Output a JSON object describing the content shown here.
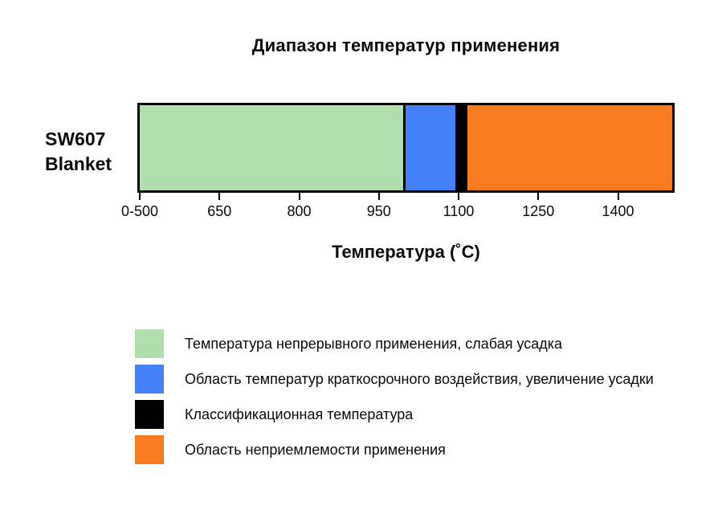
{
  "chart_data": {
    "type": "bar",
    "orientation": "horizontal-stacked-range",
    "title": "Диапазон температур применения",
    "xlabel": "Температура (˚C)",
    "category": "SW607 Blanket",
    "category_lines": [
      "SW607",
      "Blanket"
    ],
    "grid": false,
    "legend_position": "bottom-left",
    "axis": {
      "xmin": 500,
      "xmax": 1502,
      "ticks": [
        {
          "label": "0-500",
          "value": 500
        },
        {
          "label": "650",
          "value": 650
        },
        {
          "label": "800",
          "value": 800
        },
        {
          "label": "950",
          "value": 950
        },
        {
          "label": "1100",
          "value": 1100
        },
        {
          "label": "1250",
          "value": 1250
        },
        {
          "label": "1400",
          "value": 1400
        }
      ]
    },
    "segments": [
      {
        "name": "continuous-use-temperature",
        "label": "Температура непрерывного применения, слабая усадка",
        "color": "#b0deac",
        "from": 500,
        "to": 995
      },
      {
        "name": "short-term-exposure-temperature",
        "label": "Область температур краткосрочного воздействия, увеличение усадки",
        "color": "#4480f8",
        "from": 995,
        "to": 1094
      },
      {
        "name": "classification-temperature",
        "label": "Классификационная температура",
        "color": "#000000",
        "from": 1094,
        "to": 1112
      },
      {
        "name": "unacceptable-use-region",
        "label": "Область неприемлемости применения",
        "color": "#f97b20",
        "from": 1112,
        "to": 1502
      }
    ],
    "colors": {
      "bar_border": "#000000",
      "background": "#ffffff",
      "text": "#0a0a0a"
    }
  }
}
